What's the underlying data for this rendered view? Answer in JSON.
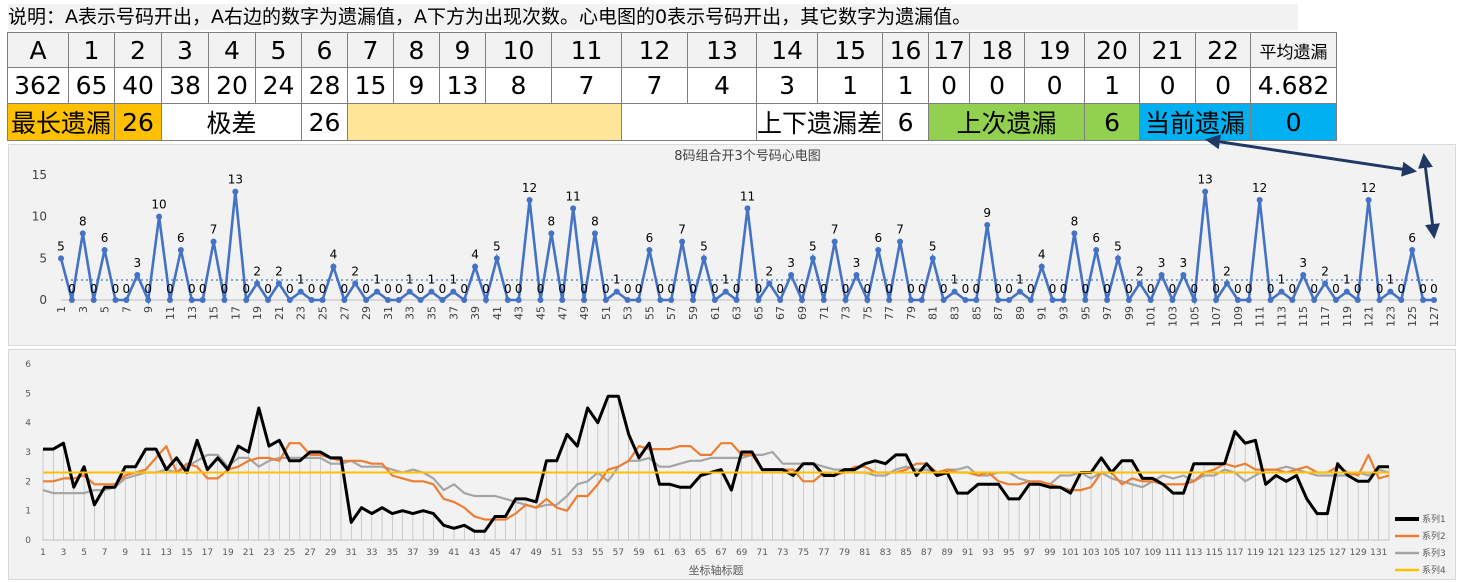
{
  "note": "说明：A表示号码开出，A右边的数字为遗漏值，A下方为出现次数。心电图的0表示号码开出，其它数字为遗漏值。",
  "table": {
    "headers": [
      "A",
      "1",
      "2",
      "3",
      "4",
      "5",
      "6",
      "7",
      "8",
      "9",
      "10",
      "11",
      "12",
      "13",
      "14",
      "15",
      "16",
      "17",
      "18",
      "19",
      "20",
      "21",
      "22",
      "平均遗漏"
    ],
    "counts": [
      "362",
      "65",
      "40",
      "38",
      "20",
      "24",
      "28",
      "15",
      "9",
      "13",
      "8",
      "7",
      "7",
      "4",
      "3",
      "1",
      "1",
      "0",
      "0",
      "0",
      "1",
      "0",
      "0",
      "4.682"
    ],
    "row3": {
      "longest_label": "最长遗漏",
      "longest_value": "26",
      "range_label": "极差",
      "range_value": "26",
      "updown_label": "上下遗漏差",
      "updown_value": "6",
      "last_label": "上次遗漏",
      "last_value": "6",
      "current_label": "当前遗漏",
      "current_value": "0"
    }
  },
  "colors": {
    "orange": "#ffc000",
    "light_yellow": "#ffe699",
    "green": "#92d050",
    "blue": "#00b0f0",
    "series_line": "#4472c4",
    "arrow": "#1f3864"
  },
  "chart_data": [
    {
      "type": "line",
      "title": "8码组合开3个号码心电图",
      "xlabel": "",
      "ylabel": "",
      "ylim": [
        0,
        15
      ],
      "yticks": [
        0,
        5,
        10,
        15
      ],
      "grid": false,
      "average_line": 2.4,
      "x": [
        1,
        2,
        3,
        4,
        5,
        6,
        7,
        8,
        9,
        10,
        11,
        12,
        13,
        14,
        15,
        16,
        17,
        18,
        19,
        20,
        21,
        22,
        23,
        24,
        25,
        26,
        27,
        28,
        29,
        30,
        31,
        32,
        33,
        34,
        35,
        36,
        37,
        38,
        39,
        40,
        41,
        42,
        43,
        44,
        45,
        46,
        47,
        48,
        49,
        50,
        51,
        52,
        53,
        54,
        55,
        56,
        57,
        58,
        59,
        60,
        61,
        62,
        63,
        64,
        65,
        66,
        67,
        68,
        69,
        70,
        71,
        72,
        73,
        74,
        75,
        76,
        77,
        78,
        79,
        80,
        81,
        82,
        83,
        84,
        85,
        86,
        87,
        88,
        89,
        90,
        91,
        92,
        93,
        94,
        95,
        96,
        97,
        98,
        99,
        100,
        101,
        102,
        103,
        104,
        105,
        106,
        107,
        108,
        109,
        110,
        111,
        112,
        113,
        114,
        115,
        116,
        117,
        118,
        119,
        120,
        121,
        122,
        123,
        124,
        125,
        126,
        127
      ],
      "values": [
        5,
        0,
        8,
        0,
        6,
        0,
        0,
        3,
        0,
        10,
        0,
        6,
        0,
        0,
        7,
        0,
        13,
        0,
        2,
        0,
        2,
        0,
        1,
        0,
        0,
        4,
        0,
        2,
        0,
        1,
        0,
        0,
        1,
        0,
        1,
        0,
        1,
        0,
        4,
        0,
        5,
        0,
        0,
        12,
        0,
        8,
        0,
        11,
        0,
        8,
        0,
        1,
        0,
        0,
        6,
        0,
        0,
        7,
        0,
        5,
        0,
        1,
        0,
        11,
        0,
        2,
        0,
        3,
        0,
        5,
        0,
        7,
        0,
        3,
        0,
        6,
        0,
        7,
        0,
        0,
        5,
        0,
        1,
        0,
        0,
        9,
        0,
        0,
        1,
        0,
        4,
        0,
        0,
        8,
        0,
        6,
        0,
        5,
        0,
        2,
        0,
        3,
        0,
        3,
        0,
        13,
        0,
        2,
        0,
        0,
        12,
        0,
        1,
        0,
        3,
        0,
        2,
        0,
        1,
        0,
        12,
        0,
        1,
        0,
        6,
        0,
        0
      ]
    },
    {
      "type": "line",
      "title": "",
      "xlabel": "坐标轴标题",
      "ylabel": "",
      "ylim": [
        0,
        6
      ],
      "yticks": [
        0,
        1,
        2,
        3,
        4,
        5,
        6
      ],
      "grid": false,
      "legend_position": "bottom-right",
      "series": [
        {
          "name": "系列1",
          "color": "#000000",
          "values": [
            3.1,
            3.1,
            3.3,
            1.8,
            2.5,
            1.2,
            1.8,
            1.8,
            2.5,
            2.5,
            3.1,
            3.1,
            2.4,
            2.8,
            2.3,
            3.4,
            2.4,
            2.8,
            2.4,
            3.2,
            3.0,
            4.5,
            3.2,
            3.4,
            2.7,
            2.7,
            3.0,
            3.0,
            2.8,
            2.8,
            0.6,
            1.1,
            0.9,
            1.1,
            0.9,
            1.0,
            0.9,
            1.0,
            0.9,
            0.5,
            0.4,
            0.5,
            0.3,
            0.3,
            0.8,
            0.8,
            1.4,
            1.4,
            1.3,
            2.7,
            2.7,
            3.6,
            3.2,
            4.5,
            4.0,
            4.9,
            4.9,
            3.6,
            2.8,
            3.3,
            1.9,
            1.9,
            1.8,
            1.8,
            2.2,
            2.3,
            2.4,
            1.7,
            3.0,
            3.0,
            2.4,
            2.4,
            2.4,
            2.2,
            2.6,
            2.6,
            2.2,
            2.2,
            2.4,
            2.4,
            2.6,
            2.7,
            2.6,
            2.9,
            2.9,
            2.2,
            2.6,
            2.2,
            2.3,
            1.6,
            1.6,
            1.9,
            1.9,
            1.9,
            1.4,
            1.4,
            1.9,
            1.9,
            1.8,
            1.8,
            1.6,
            2.3,
            2.3,
            2.8,
            2.3,
            2.7,
            2.7,
            2.1,
            2.1,
            1.9,
            1.6,
            1.6,
            2.6,
            2.6,
            2.6,
            2.6,
            3.7,
            3.3,
            3.4,
            1.9,
            2.2,
            2.0,
            2.2,
            1.4,
            0.9,
            0.9,
            2.6,
            2.2,
            2.0,
            2.0,
            2.5,
            2.5
          ]
        },
        {
          "name": "系列2",
          "color": "#ed7d31",
          "values": [
            2.0,
            2.0,
            2.1,
            2.1,
            2.2,
            1.9,
            1.9,
            1.9,
            2.2,
            2.3,
            2.4,
            2.8,
            3.2,
            2.3,
            2.6,
            2.5,
            2.1,
            2.1,
            2.4,
            2.5,
            2.7,
            2.8,
            2.8,
            2.7,
            3.3,
            3.3,
            2.9,
            2.9,
            2.8,
            2.7,
            2.7,
            2.7,
            2.6,
            2.6,
            2.2,
            2.1,
            2.0,
            2.0,
            1.9,
            1.4,
            1.3,
            1.1,
            0.8,
            0.7,
            0.7,
            0.7,
            0.9,
            1.2,
            1.1,
            1.4,
            1.1,
            1.0,
            1.5,
            1.5,
            1.9,
            2.4,
            2.5,
            2.7,
            3.2,
            3.1,
            3.1,
            3.1,
            3.2,
            3.2,
            2.9,
            2.9,
            3.3,
            3.3,
            2.9,
            2.9,
            2.4,
            2.4,
            2.4,
            2.4,
            2.0,
            2.0,
            2.3,
            2.2,
            2.3,
            2.5,
            2.5,
            2.3,
            2.3,
            2.3,
            2.4,
            2.6,
            2.6,
            2.3,
            2.4,
            2.3,
            2.3,
            2.2,
            2.3,
            2.0,
            1.9,
            1.9,
            2.0,
            2.0,
            1.9,
            1.8,
            1.7,
            1.7,
            1.8,
            2.3,
            2.3,
            1.9,
            2.1,
            2.0,
            2.0,
            1.9,
            1.9,
            1.9,
            2.0,
            2.3,
            2.4,
            2.6,
            2.5,
            2.6,
            2.4,
            2.4,
            2.4,
            2.3,
            2.4,
            2.5,
            2.3,
            2.3,
            2.5,
            2.3,
            2.2,
            2.9,
            2.1,
            2.2
          ]
        },
        {
          "name": "系列3",
          "color": "#a5a5a5",
          "values": [
            1.7,
            1.6,
            1.6,
            1.6,
            1.6,
            1.7,
            1.7,
            1.8,
            2.1,
            2.2,
            2.3,
            2.3,
            2.4,
            2.3,
            2.5,
            2.7,
            2.9,
            2.9,
            2.5,
            2.8,
            2.8,
            2.5,
            2.7,
            2.8,
            2.8,
            2.8,
            2.8,
            2.8,
            2.6,
            2.6,
            2.7,
            2.5,
            2.5,
            2.5,
            2.4,
            2.3,
            2.4,
            2.3,
            2.1,
            1.7,
            1.9,
            1.6,
            1.5,
            1.5,
            1.5,
            1.4,
            1.3,
            1.2,
            1.1,
            1.2,
            1.2,
            1.5,
            1.9,
            2.0,
            2.3,
            2.0,
            2.5,
            2.7,
            2.7,
            2.8,
            2.5,
            2.5,
            2.6,
            2.7,
            2.7,
            2.8,
            2.8,
            2.8,
            2.8,
            2.9,
            2.9,
            3.0,
            2.6,
            2.6,
            2.6,
            2.6,
            2.5,
            2.4,
            2.4,
            2.3,
            2.3,
            2.2,
            2.2,
            2.4,
            2.5,
            2.4,
            2.4,
            2.3,
            2.4,
            2.4,
            2.5,
            2.2,
            2.2,
            2.3,
            2.3,
            2.1,
            2.0,
            1.9,
            1.9,
            2.2,
            2.2,
            2.3,
            2.1,
            2.3,
            2.1,
            2.0,
            1.9,
            1.8,
            2.0,
            2.2,
            2.1,
            2.2,
            2.0,
            2.2,
            2.2,
            2.4,
            2.3,
            2.0,
            2.2,
            2.4,
            2.4,
            2.5,
            2.4,
            2.3,
            2.2,
            2.2,
            2.2,
            2.2,
            2.3,
            2.2,
            2.4,
            2.3
          ]
        },
        {
          "name": "系列4",
          "color": "#ffc000",
          "values": [
            2.3,
            2.3,
            2.3,
            2.3,
            2.3,
            2.3,
            2.3,
            2.3,
            2.3,
            2.3,
            2.3,
            2.3,
            2.3,
            2.3,
            2.3,
            2.3,
            2.3,
            2.3,
            2.3,
            2.3,
            2.3,
            2.3,
            2.3,
            2.3,
            2.3,
            2.3,
            2.3,
            2.3,
            2.3,
            2.3,
            2.3,
            2.3,
            2.3,
            2.3,
            2.3,
            2.3,
            2.3,
            2.3,
            2.3,
            2.3,
            2.3,
            2.3,
            2.3,
            2.3,
            2.3,
            2.3,
            2.3,
            2.3,
            2.3,
            2.3,
            2.3,
            2.3,
            2.3,
            2.3,
            2.3,
            2.3,
            2.3,
            2.3,
            2.3,
            2.3,
            2.3,
            2.3,
            2.3,
            2.3,
            2.3,
            2.3,
            2.3,
            2.3,
            2.3,
            2.3,
            2.3,
            2.3,
            2.3,
            2.3,
            2.3,
            2.3,
            2.3,
            2.3,
            2.3,
            2.3,
            2.3,
            2.3,
            2.3,
            2.3,
            2.3,
            2.3,
            2.3,
            2.3,
            2.3,
            2.3,
            2.3,
            2.3,
            2.3,
            2.3,
            2.3,
            2.3,
            2.3,
            2.3,
            2.3,
            2.3,
            2.3,
            2.3,
            2.3,
            2.3,
            2.3,
            2.3,
            2.3,
            2.3,
            2.3,
            2.3,
            2.3,
            2.3,
            2.3,
            2.3,
            2.3,
            2.3,
            2.3,
            2.3,
            2.3,
            2.3,
            2.3,
            2.3,
            2.3,
            2.3,
            2.3,
            2.3,
            2.3,
            2.3,
            2.3,
            2.3,
            2.3,
            2.3
          ]
        }
      ]
    }
  ]
}
